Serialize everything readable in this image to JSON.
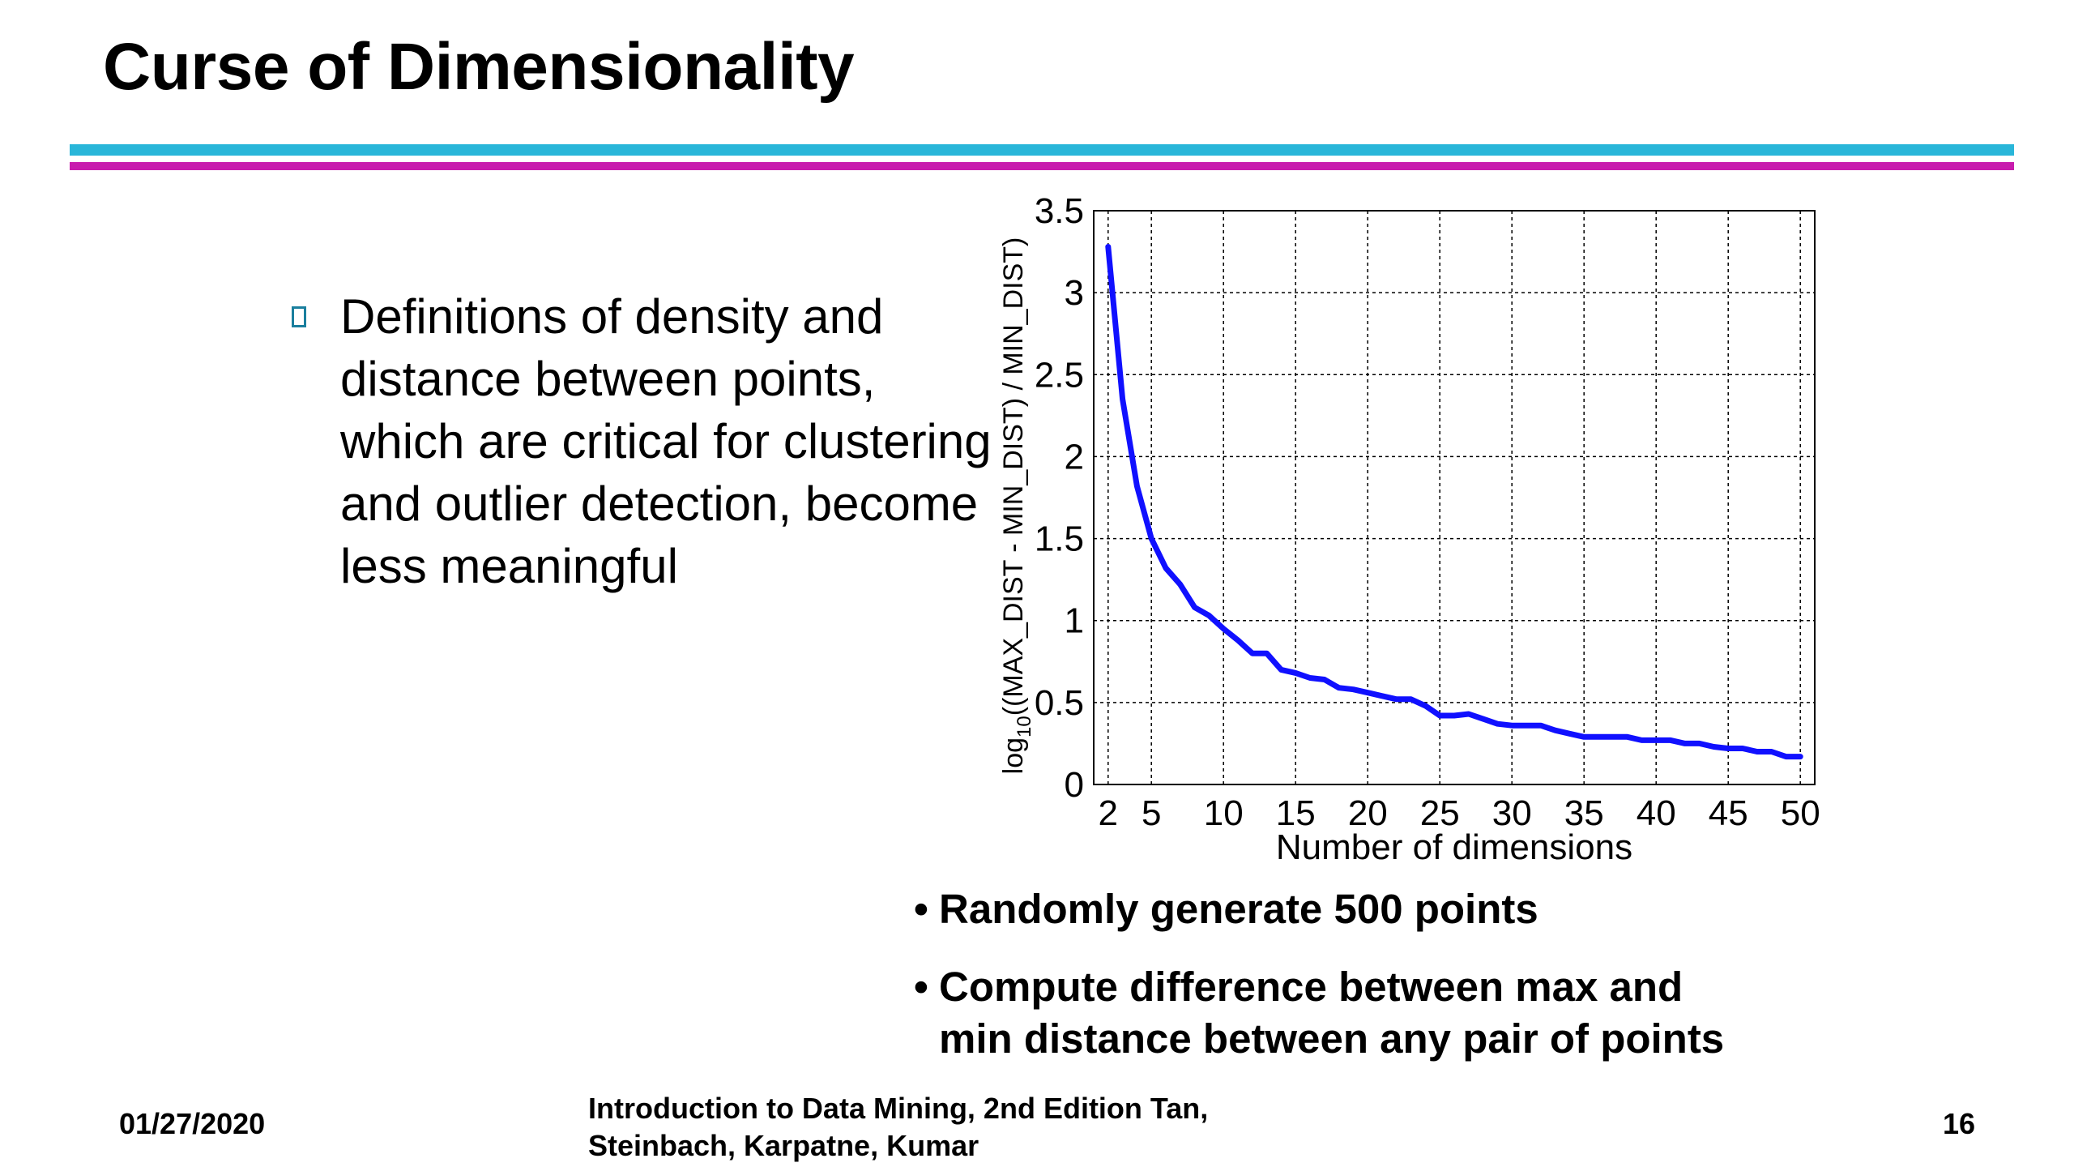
{
  "slide": {
    "title": "Curse of Dimensionality",
    "accent_colors": {
      "top_rule": "#29b6d9",
      "bottom_rule": "#c81cae",
      "bullet_box": "#1a7f9e"
    }
  },
  "bullet": {
    "icon": "square-bullet-icon",
    "text": "Definitions of density and distance between points, which are critical for clustering and outlier detection, become less meaningful"
  },
  "notes": [
    {
      "text": "Randomly generate 500 points"
    },
    {
      "text": "Compute difference between max and"
    },
    {
      "text": "min distance between any pair of points"
    }
  ],
  "bullet_char": "•",
  "chart_data": {
    "type": "line",
    "title": "",
    "xlabel": "Number of dimensions",
    "ylabel_prefix": "log",
    "ylabel_sub": "10",
    "ylabel_rest": "((MAX_DIST - MIN_DIST) / MIN_DIST)",
    "xlim": [
      1,
      51
    ],
    "ylim": [
      0,
      3.5
    ],
    "xticks": [
      2,
      5,
      10,
      15,
      20,
      25,
      30,
      35,
      40,
      45,
      50
    ],
    "yticks": [
      0,
      0.5,
      1,
      1.5,
      2,
      2.5,
      3,
      3.5
    ],
    "ytick_labels": [
      "0",
      "0.5",
      "1",
      "1.5",
      "2",
      "2.5",
      "3",
      "3.5"
    ],
    "grid": true,
    "line_color": "#1010ff",
    "series": [
      {
        "x": [
          2,
          3,
          4,
          5,
          6,
          7,
          8,
          9,
          10,
          11,
          12,
          13,
          14,
          15,
          16,
          17,
          18,
          19,
          20,
          21,
          22,
          23,
          24,
          25,
          26,
          27,
          28,
          29,
          30,
          31,
          32,
          33,
          34,
          35,
          36,
          37,
          38,
          39,
          40,
          41,
          42,
          43,
          44,
          45,
          46,
          47,
          48,
          49,
          50
        ],
        "values": [
          3.28,
          2.35,
          1.82,
          1.5,
          1.32,
          1.22,
          1.08,
          1.03,
          0.95,
          0.88,
          0.8,
          0.8,
          0.7,
          0.68,
          0.65,
          0.64,
          0.59,
          0.58,
          0.56,
          0.54,
          0.52,
          0.52,
          0.48,
          0.42,
          0.42,
          0.43,
          0.4,
          0.37,
          0.36,
          0.36,
          0.36,
          0.33,
          0.31,
          0.29,
          0.29,
          0.29,
          0.29,
          0.27,
          0.27,
          0.27,
          0.25,
          0.25,
          0.23,
          0.22,
          0.22,
          0.2,
          0.2,
          0.17,
          0.17
        ]
      }
    ]
  },
  "footer": {
    "date": "01/27/2020",
    "citation": "Introduction to Data Mining, 2nd Edition   Tan,\nSteinbach, Karpatne, Kumar",
    "page_number": "16"
  }
}
